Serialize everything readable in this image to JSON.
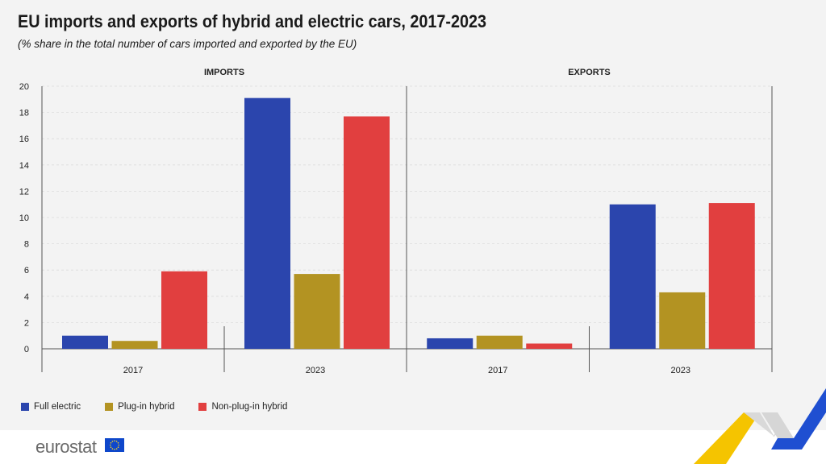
{
  "title": "EU imports and exports of hybrid and electric cars, 2017-2023",
  "subtitle": "(% share in the total number of cars imported and exported by the EU)",
  "logo": "eurostat",
  "colors": {
    "full_electric": "#2b45ad",
    "plug_in_hybrid": "#b39322",
    "non_plug_in_hybrid": "#e13f3f"
  },
  "legend": [
    {
      "name": "Full electric",
      "color": "#2b45ad"
    },
    {
      "name": "Plug-in hybrid",
      "color": "#b39322"
    },
    {
      "name": "Non-plug-in hybrid",
      "color": "#e13f3f"
    }
  ],
  "chart_data": [
    {
      "type": "bar",
      "panel_title": "IMPORTS",
      "categories": [
        "2017",
        "2023"
      ],
      "series": [
        {
          "name": "Full electric",
          "values": [
            1.0,
            19.1
          ]
        },
        {
          "name": "Plug-in hybrid",
          "values": [
            0.6,
            5.7
          ]
        },
        {
          "name": "Non-plug-in hybrid",
          "values": [
            5.9,
            17.7
          ]
        }
      ],
      "ylim": [
        0,
        20
      ],
      "yticks": [
        0,
        2,
        4,
        6,
        8,
        10,
        12,
        14,
        16,
        18,
        20
      ],
      "grid": true
    },
    {
      "type": "bar",
      "panel_title": "EXPORTS",
      "categories": [
        "2017",
        "2023"
      ],
      "series": [
        {
          "name": "Full electric",
          "values": [
            0.8,
            11.0
          ]
        },
        {
          "name": "Plug-in hybrid",
          "values": [
            1.0,
            4.3
          ]
        },
        {
          "name": "Non-plug-in hybrid",
          "values": [
            0.4,
            11.1
          ]
        }
      ],
      "ylim": [
        0,
        20
      ],
      "yticks": [
        0,
        2,
        4,
        6,
        8,
        10,
        12,
        14,
        16,
        18,
        20
      ],
      "grid": true
    }
  ]
}
